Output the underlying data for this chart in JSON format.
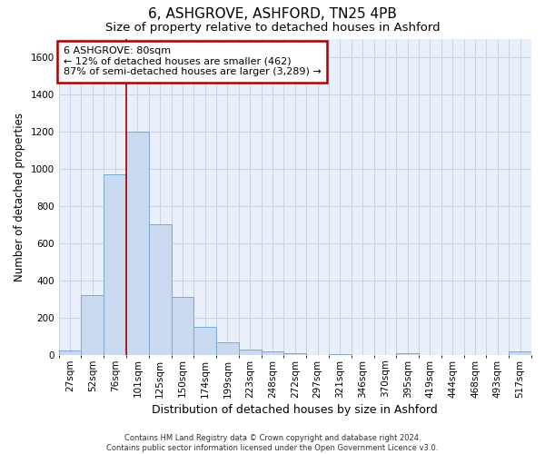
{
  "title": "6, ASHGROVE, ASHFORD, TN25 4PB",
  "subtitle": "Size of property relative to detached houses in Ashford",
  "xlabel": "Distribution of detached houses by size in Ashford",
  "ylabel": "Number of detached properties",
  "footer_line1": "Contains HM Land Registry data © Crown copyright and database right 2024.",
  "footer_line2": "Contains public sector information licensed under the Open Government Licence v3.0.",
  "categories": [
    "27sqm",
    "52sqm",
    "76sqm",
    "101sqm",
    "125sqm",
    "150sqm",
    "174sqm",
    "199sqm",
    "223sqm",
    "248sqm",
    "272sqm",
    "297sqm",
    "321sqm",
    "346sqm",
    "370sqm",
    "395sqm",
    "419sqm",
    "444sqm",
    "468sqm",
    "493sqm",
    "517sqm"
  ],
  "values": [
    20,
    320,
    970,
    1200,
    700,
    310,
    150,
    65,
    25,
    15,
    10,
    0,
    5,
    0,
    0,
    10,
    0,
    0,
    0,
    0,
    15
  ],
  "bar_color": "#c9d9f0",
  "bar_edge_color": "#7aaace",
  "ylim": [
    0,
    1700
  ],
  "yticks": [
    0,
    200,
    400,
    600,
    800,
    1000,
    1200,
    1400,
    1600
  ],
  "red_line_index": 2.5,
  "annotation_text": "6 ASHGROVE: 80sqm\n← 12% of detached houses are smaller (462)\n87% of semi-detached houses are larger (3,289) →",
  "annotation_box_color": "#ffffff",
  "annotation_border_color": "#aa0000",
  "grid_color": "#c8d4e8",
  "background_color": "#eaf0fa",
  "title_fontsize": 11,
  "subtitle_fontsize": 9.5,
  "tick_fontsize": 7.5,
  "ylabel_fontsize": 8.5,
  "xlabel_fontsize": 9,
  "annotation_fontsize": 8,
  "footer_fontsize": 6
}
